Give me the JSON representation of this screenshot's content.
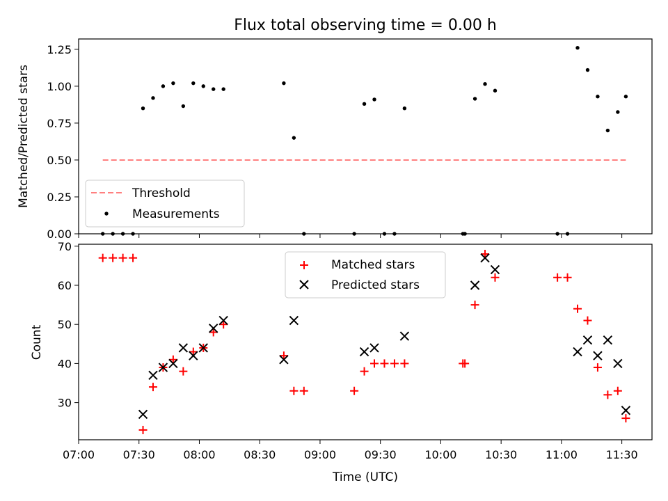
{
  "chart_data": [
    {
      "type": "scatter",
      "title": "Flux total observing time = 0.00 h",
      "ylabel": "Matched/Predicted stars",
      "xlabel": "",
      "ylim": [
        0,
        1.32
      ],
      "yticks": [
        "0.00",
        "0.25",
        "0.50",
        "0.75",
        "1.00",
        "1.25"
      ],
      "ytick_values": [
        0,
        0.25,
        0.5,
        0.75,
        1.0,
        1.25
      ],
      "legend_position": "lower-left",
      "threshold": {
        "name": "Threshold",
        "value": 0.5,
        "x_start": "07:12",
        "x_end": "11:32",
        "color": "#ff7f7f"
      },
      "series": [
        {
          "name": "Measurements",
          "color": "#000000",
          "x": [
            "07:12",
            "07:17",
            "07:22",
            "07:27",
            "07:32",
            "07:37",
            "07:42",
            "07:47",
            "07:52",
            "07:57",
            "08:02",
            "08:07",
            "08:12",
            "08:42",
            "08:47",
            "08:52",
            "09:17",
            "09:22",
            "09:27",
            "09:32",
            "09:37",
            "09:42",
            "10:11",
            "10:12",
            "10:17",
            "10:22",
            "10:27",
            "10:58",
            "11:03",
            "11:08",
            "11:13",
            "11:18",
            "11:23",
            "11:28",
            "11:32"
          ],
          "y": [
            0,
            0,
            0,
            0,
            0.85,
            0.92,
            1.0,
            1.02,
            0.865,
            1.02,
            1.0,
            0.98,
            0.98,
            1.02,
            0.65,
            0,
            0,
            0.88,
            0.91,
            0,
            0,
            0.85,
            0,
            0,
            0.915,
            1.015,
            0.97,
            0,
            0,
            1.26,
            1.11,
            0.93,
            0.7,
            0.825,
            0.93
          ]
        }
      ]
    },
    {
      "type": "scatter",
      "title": "",
      "xlabel": "Time (UTC)",
      "ylabel": "Count",
      "ylim": [
        20.5,
        70.5
      ],
      "yticks": [
        "30",
        "40",
        "50",
        "60",
        "70"
      ],
      "ytick_values": [
        30,
        40,
        50,
        60,
        70
      ],
      "xlim": [
        "07:00",
        "11:45"
      ],
      "xticks": [
        "07:00",
        "07:30",
        "08:00",
        "08:30",
        "09:00",
        "09:30",
        "10:00",
        "10:30",
        "11:00",
        "11:30"
      ],
      "legend_position": "upper-center",
      "series": [
        {
          "name": "Matched stars",
          "color": "#ff0000",
          "marker": "plus",
          "x": [
            "07:12",
            "07:17",
            "07:22",
            "07:27",
            "07:32",
            "07:37",
            "07:42",
            "07:47",
            "07:52",
            "07:57",
            "08:02",
            "08:07",
            "08:12",
            "08:42",
            "08:47",
            "08:52",
            "09:17",
            "09:22",
            "09:27",
            "09:32",
            "09:37",
            "09:42",
            "10:11",
            "10:12",
            "10:17",
            "10:22",
            "10:27",
            "10:58",
            "11:03",
            "11:08",
            "11:13",
            "11:18",
            "11:23",
            "11:28",
            "11:32"
          ],
          "y": [
            67,
            67,
            67,
            67,
            23,
            34,
            39,
            41,
            38,
            43,
            44,
            48,
            50,
            42,
            33,
            33,
            33,
            38,
            40,
            40,
            40,
            40,
            40,
            40,
            55,
            68,
            62,
            62,
            62,
            54,
            51,
            39,
            32,
            33,
            26
          ]
        },
        {
          "name": "Predicted stars",
          "color": "#000000",
          "marker": "x",
          "x": [
            "07:32",
            "07:37",
            "07:42",
            "07:47",
            "07:52",
            "07:57",
            "08:02",
            "08:07",
            "08:12",
            "08:42",
            "08:47",
            "09:22",
            "09:27",
            "09:42",
            "10:17",
            "10:22",
            "10:27",
            "11:08",
            "11:13",
            "11:18",
            "11:23",
            "11:28",
            "11:32"
          ],
          "y": [
            27,
            37,
            39,
            40,
            44,
            42,
            44,
            49,
            51,
            41,
            51,
            43,
            44,
            47,
            60,
            67,
            64,
            43,
            46,
            42,
            46,
            40,
            28
          ]
        }
      ]
    }
  ]
}
